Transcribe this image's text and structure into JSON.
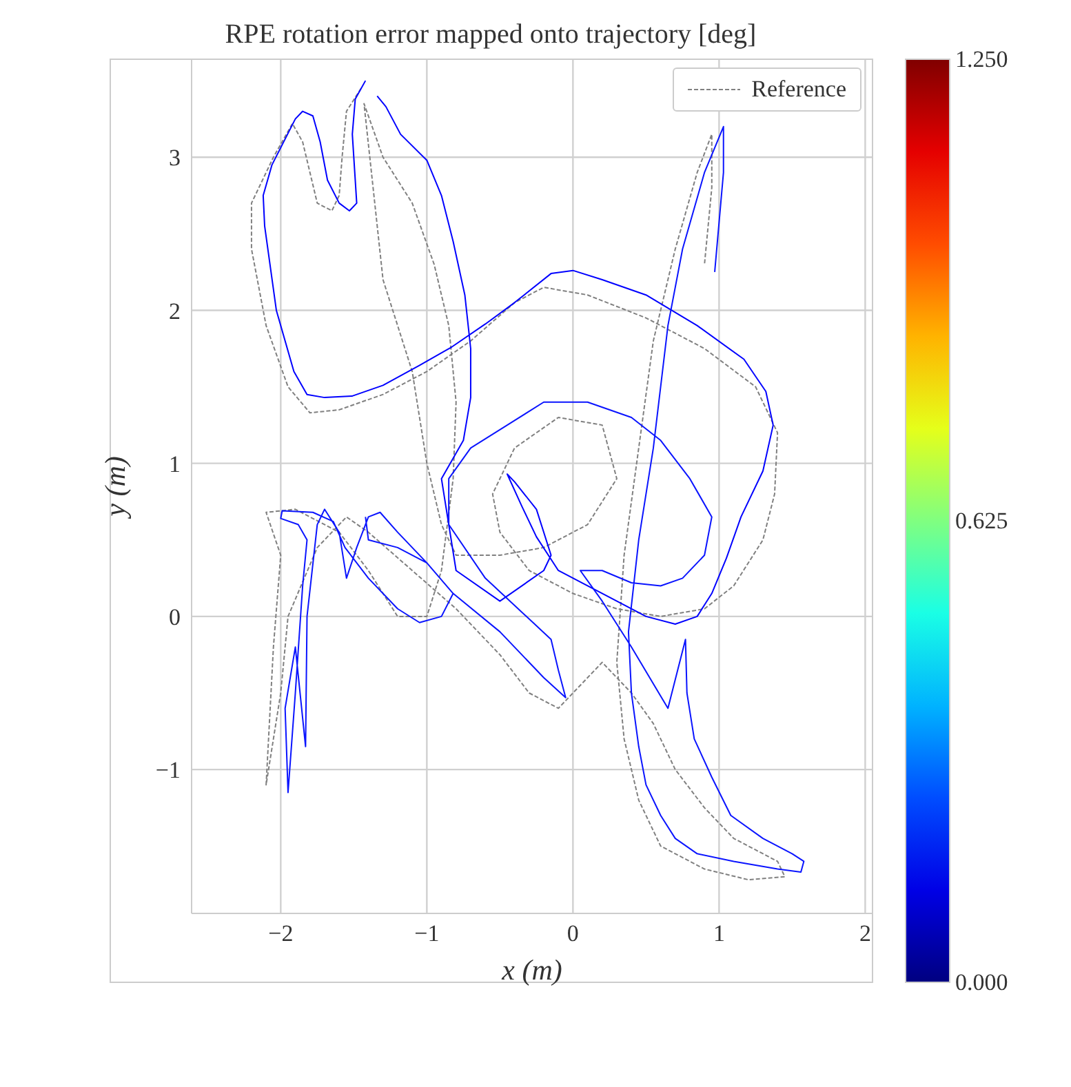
{
  "chart_data": {
    "type": "line",
    "title": "RPE rotation error mapped onto trajectory [deg]",
    "xlabel": "x (m)",
    "ylabel": "y (m)",
    "xlim": [
      -2.61,
      2.05
    ],
    "ylim": [
      -1.94,
      3.64
    ],
    "xticks": [
      {
        "value": -2,
        "label": "−2"
      },
      {
        "value": -1,
        "label": "−1"
      },
      0,
      1,
      2
    ],
    "yticks": [
      {
        "value": -1,
        "label": "−1"
      },
      0,
      1,
      2,
      3
    ],
    "grid": true,
    "legend": "top right",
    "clim": [
      0,
      1.25
    ],
    "cticks": [
      {
        "value": 0,
        "label": "0.000"
      },
      {
        "value": 0.625,
        "label": "0.625"
      },
      {
        "value": 1.25,
        "label": "1.250"
      }
    ],
    "series": [
      {
        "name": "Reference",
        "color": "#808080",
        "line_style": "dashed",
        "x": [
          -1.45,
          -1.55,
          -1.58,
          -1.6,
          -1.65,
          -1.75,
          -1.85,
          -1.92,
          -2.05,
          -2.2,
          -2.2,
          -2.1,
          -1.95,
          -1.8,
          -1.6,
          -1.3,
          -1.0,
          -0.7,
          -0.4,
          -0.2,
          0.1,
          0.5,
          0.9,
          1.25,
          1.4,
          1.38,
          1.3,
          1.1,
          0.9,
          0.6,
          0.3,
          0.0,
          -0.3,
          -0.5,
          -0.55,
          -0.4,
          -0.1,
          0.2,
          0.3,
          0.1,
          -0.2,
          -0.5,
          -0.8,
          -0.9,
          -1.0,
          -1.1,
          -1.3,
          -1.43,
          -1.3,
          -1.1,
          -0.95,
          -0.85,
          -0.8,
          -0.82,
          -0.9,
          -1.0,
          -1.2,
          -1.4,
          -1.6,
          -1.9,
          -2.1,
          -2.0,
          -2.05,
          -2.1,
          -2.0,
          -1.95,
          -1.75,
          -1.55,
          -1.4,
          -1.1,
          -0.8,
          -0.5,
          -0.3,
          -0.1,
          0.2,
          0.4,
          0.55,
          0.7,
          0.9,
          1.1,
          1.4,
          1.45,
          1.2,
          0.9,
          0.6,
          0.45,
          0.35,
          0.3,
          0.35,
          0.45,
          0.55,
          0.7,
          0.85,
          0.95,
          0.95,
          0.9
        ],
        "values": [
          3.45,
          3.3,
          3.0,
          2.75,
          2.65,
          2.7,
          3.1,
          3.22,
          3.0,
          2.7,
          2.4,
          1.9,
          1.5,
          1.33,
          1.35,
          1.45,
          1.6,
          1.8,
          2.05,
          2.15,
          2.1,
          1.95,
          1.75,
          1.5,
          1.2,
          0.8,
          0.5,
          0.2,
          0.05,
          0.0,
          0.05,
          0.15,
          0.3,
          0.55,
          0.8,
          1.1,
          1.3,
          1.25,
          0.9,
          0.6,
          0.45,
          0.4,
          0.4,
          0.6,
          1.0,
          1.6,
          2.2,
          3.35,
          3.0,
          2.7,
          2.3,
          1.9,
          1.4,
          0.9,
          0.3,
          0.0,
          0.0,
          0.3,
          0.55,
          0.7,
          0.68,
          0.4,
          -0.2,
          -1.1,
          -0.5,
          0.0,
          0.45,
          0.65,
          0.55,
          0.3,
          0.05,
          -0.25,
          -0.5,
          -0.6,
          -0.3,
          -0.5,
          -0.7,
          -1.0,
          -1.25,
          -1.45,
          -1.6,
          -1.7,
          -1.72,
          -1.65,
          -1.5,
          -1.2,
          -0.8,
          -0.3,
          0.4,
          1.1,
          1.8,
          2.4,
          2.9,
          3.15,
          2.8,
          2.3
        ]
      },
      {
        "color": "#0000ff",
        "x": [
          -1.42,
          -1.49,
          -1.51,
          -1.48,
          -1.53,
          -1.6,
          -1.68,
          -1.73,
          -1.78,
          -1.85,
          -1.9,
          -2.06,
          -2.12,
          -2.11,
          -2.03,
          -1.91,
          -1.82,
          -1.7,
          -1.51,
          -1.3,
          -1.05,
          -0.83,
          -0.6,
          -0.4,
          -0.15,
          0.0,
          0.2,
          0.5,
          0.85,
          1.17,
          1.32,
          1.37,
          1.3,
          1.15,
          1.05,
          0.95,
          0.85,
          0.7,
          0.5,
          0.3,
          0.1,
          -0.1,
          -0.25,
          -0.35,
          -0.45,
          -0.4,
          -0.25,
          -0.15,
          -0.2,
          -0.5,
          -0.8,
          -0.9,
          -0.75,
          -0.7,
          -0.7,
          -0.74,
          -0.82,
          -0.9,
          -1.0,
          -1.18,
          -1.28,
          -1.34
        ],
        "values": [
          3.5,
          3.38,
          3.15,
          2.7,
          2.65,
          2.7,
          2.85,
          3.1,
          3.27,
          3.3,
          3.25,
          2.95,
          2.75,
          2.55,
          2.0,
          1.6,
          1.45,
          1.43,
          1.44,
          1.51,
          1.64,
          1.76,
          1.91,
          2.05,
          2.24,
          2.26,
          2.2,
          2.1,
          1.9,
          1.68,
          1.47,
          1.25,
          0.95,
          0.65,
          0.38,
          0.15,
          0.0,
          -0.05,
          0.0,
          0.1,
          0.2,
          0.3,
          0.52,
          0.72,
          0.93,
          0.88,
          0.7,
          0.4,
          0.3,
          0.1,
          0.3,
          0.9,
          1.15,
          1.43,
          1.75,
          2.1,
          2.45,
          2.75,
          2.98,
          3.15,
          3.33,
          3.4
        ]
      },
      {
        "color": "#0a14ff",
        "x": [
          -1.42,
          -1.4,
          -1.2,
          -1.0,
          -0.82,
          -0.9,
          -1.05,
          -1.2,
          -1.4,
          -1.56,
          -1.64,
          -1.78,
          -1.99,
          -2.0,
          -1.88,
          -1.82,
          -1.85,
          -1.9,
          -1.95,
          -1.97,
          -1.9,
          -1.83,
          -1.82,
          -1.75,
          -1.7,
          -1.6,
          -1.55,
          -1.48,
          -1.4,
          -1.32,
          -1.2,
          -1.0,
          -0.82,
          -0.5,
          -0.2,
          -0.05,
          -0.1,
          -0.15,
          -0.6,
          -0.85,
          -0.85,
          -0.7,
          -0.45,
          -0.2,
          0.1,
          0.4,
          0.6,
          0.8,
          0.95,
          0.9,
          0.75,
          0.6,
          0.4,
          0.2,
          0.05,
          0.2,
          0.4,
          0.65,
          0.77,
          0.78,
          0.83,
          0.95,
          1.08,
          1.3,
          1.5,
          1.58,
          1.56,
          1.4,
          1.1,
          0.85,
          0.7,
          0.6,
          0.5,
          0.45,
          0.4,
          0.38,
          0.45,
          0.55,
          0.65,
          0.75,
          0.9,
          1.03,
          1.03,
          0.97
        ],
        "values": [
          0.65,
          0.5,
          0.45,
          0.35,
          0.15,
          0.0,
          -0.04,
          0.05,
          0.25,
          0.45,
          0.62,
          0.68,
          0.69,
          0.64,
          0.6,
          0.5,
          0.2,
          -0.5,
          -1.15,
          -0.6,
          -0.2,
          -0.85,
          0.0,
          0.6,
          0.7,
          0.55,
          0.25,
          0.45,
          0.65,
          0.68,
          0.55,
          0.35,
          0.15,
          -0.1,
          -0.4,
          -0.53,
          -0.35,
          -0.15,
          0.25,
          0.6,
          0.9,
          1.1,
          1.25,
          1.4,
          1.4,
          1.3,
          1.15,
          0.9,
          0.65,
          0.4,
          0.25,
          0.2,
          0.22,
          0.3,
          0.3,
          0.1,
          -0.2,
          -0.6,
          -0.15,
          -0.5,
          -0.8,
          -1.05,
          -1.3,
          -1.45,
          -1.55,
          -1.6,
          -1.67,
          -1.65,
          -1.6,
          -1.55,
          -1.45,
          -1.3,
          -1.1,
          -0.85,
          -0.5,
          -0.1,
          0.5,
          1.1,
          1.9,
          2.4,
          2.9,
          3.2,
          2.9,
          2.25
        ]
      }
    ]
  }
}
